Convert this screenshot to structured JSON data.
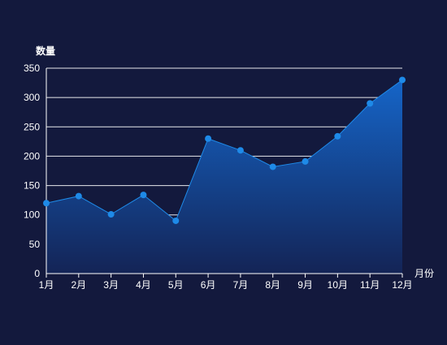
{
  "chart_data": {
    "type": "area",
    "categories": [
      "1月",
      "2月",
      "3月",
      "4月",
      "5月",
      "6月",
      "7月",
      "8月",
      "9月",
      "10月",
      "11月",
      "12月"
    ],
    "series": [
      {
        "values": [
          120,
          132,
          101,
          134,
          90,
          230,
          210,
          182,
          191,
          234,
          290,
          330
        ]
      }
    ],
    "xlabel": "月份",
    "ylabel": "数量",
    "ylim": [
      0,
      350
    ],
    "yticks": [
      0,
      50,
      100,
      150,
      200,
      250,
      300,
      350
    ],
    "grid": true,
    "colors": {
      "background": "#13193d",
      "line": "#1e8ae8",
      "point": "#1e8ae8",
      "area_top": "#1565c8",
      "area_bottom": "#142456",
      "grid": "#ffffff",
      "axis": "#ffffff",
      "text": "#ffffff"
    }
  }
}
